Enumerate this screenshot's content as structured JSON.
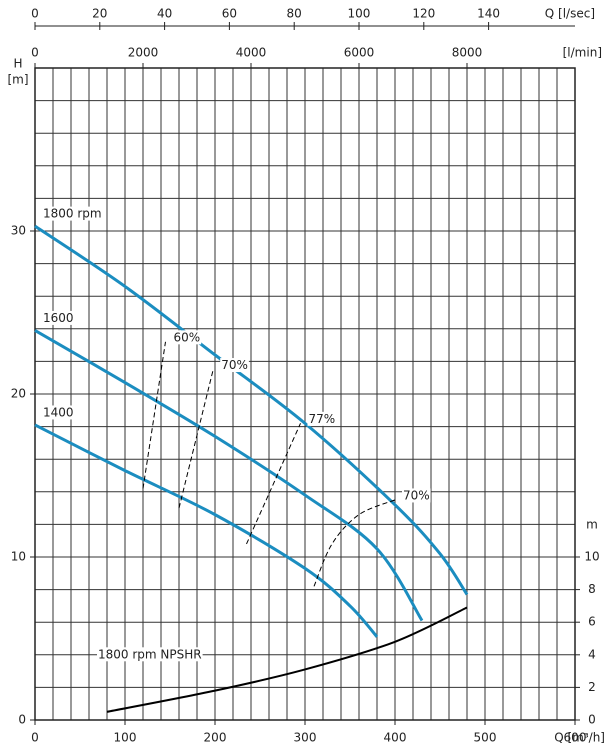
{
  "chart_data": {
    "type": "line",
    "x_label": "Q [m³/h]",
    "y_label": "H",
    "y_unit": "[m]",
    "x2_label": "Q [l/sec]",
    "x3_label": "[l/min]",
    "y2_label": "m",
    "xlim": [
      0,
      600
    ],
    "xticks": [
      0,
      100,
      200,
      300,
      400,
      500,
      600
    ],
    "xgrid": [
      0,
      20,
      40,
      60,
      80,
      100,
      120,
      140,
      160,
      180,
      200,
      220,
      240,
      260,
      280,
      300,
      320,
      340,
      360,
      380,
      400,
      420,
      440,
      460,
      480,
      500,
      520,
      540,
      560,
      580,
      600
    ],
    "x2lim": [
      0,
      166.667
    ],
    "x2ticks": [
      0,
      20,
      40,
      60,
      80,
      100,
      120,
      140
    ],
    "x3lim": [
      0,
      10000
    ],
    "x3ticks": [
      0,
      2000,
      4000,
      6000,
      8000
    ],
    "ylim": [
      0,
      40
    ],
    "yticks": [
      0,
      10,
      20,
      30
    ],
    "ygrid": [
      0,
      2,
      4,
      6,
      8,
      10,
      12,
      14,
      16,
      18,
      20,
      22,
      24,
      26,
      28,
      30,
      32,
      34,
      36,
      38,
      40
    ],
    "y2lim": [
      0,
      40
    ],
    "y2ticks": [
      0,
      2,
      4,
      6,
      8,
      10
    ],
    "series": [
      {
        "name": "1800 rpm",
        "color": "#1b8dc0",
        "x": [
          0,
          100,
          200,
          300,
          400,
          450,
          480
        ],
        "values": [
          30.3,
          26.6,
          22.4,
          18.2,
          13.2,
          10.2,
          7.7
        ]
      },
      {
        "name": "1600",
        "color": "#1b8dc0",
        "x": [
          0,
          100,
          200,
          300,
          380,
          430
        ],
        "values": [
          23.9,
          20.7,
          17.4,
          13.8,
          10.5,
          6.1
        ]
      },
      {
        "name": "1400",
        "color": "#1b8dc0",
        "x": [
          0,
          100,
          200,
          300,
          350,
          380
        ],
        "values": [
          18.1,
          15.3,
          12.6,
          9.3,
          7.0,
          5.1
        ]
      },
      {
        "name": "1800 rpm NPSHR",
        "color": "#000000",
        "axis": "y2",
        "x": [
          80,
          200,
          300,
          400,
          480
        ],
        "values": [
          0.5,
          1.8,
          3.1,
          4.8,
          6.9
        ]
      },
      {
        "name": "60%",
        "color": "#000000",
        "dash": true,
        "x": [
          120,
          145
        ],
        "values": [
          14.2,
          23.2
        ]
      },
      {
        "name": "70%",
        "color": "#000000",
        "dash": true,
        "x": [
          160,
          198
        ],
        "values": [
          13.0,
          21.5
        ]
      },
      {
        "name": "77%",
        "color": "#000000",
        "dash": true,
        "x": [
          235,
          295
        ],
        "values": [
          10.8,
          18.2
        ]
      },
      {
        "name": "70%",
        "color": "#000000",
        "dash": true,
        "x": [
          310,
          330,
          360,
          400
        ],
        "values": [
          8.2,
          10.8,
          12.6,
          13.5
        ]
      }
    ]
  }
}
